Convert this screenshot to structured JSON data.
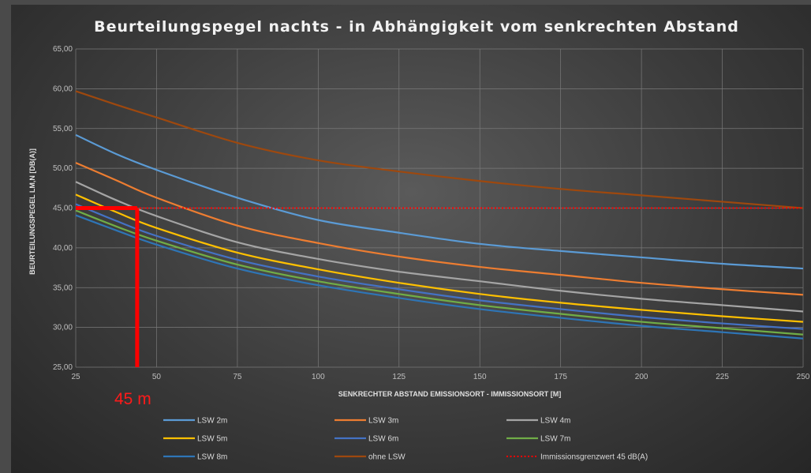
{
  "chart_data": {
    "type": "line",
    "title": "Beurteilungspegel nachts - in Abhängigkeit vom senkrechten Abstand",
    "xlabel": "SENKRECHTER ABSTAND EMISSIONSORT - IMMISSIONSORT [M]",
    "ylabel": "BEURTEILUNGSPEGEL LM,N [DB(A)]",
    "xlim": [
      25,
      250
    ],
    "ylim": [
      25,
      65
    ],
    "x_ticks": [
      25,
      50,
      75,
      100,
      125,
      150,
      175,
      200,
      225,
      250
    ],
    "x_tick_labels": [
      "25",
      "50",
      "75",
      "100",
      "125",
      "150",
      "175",
      "200",
      "225",
      "250"
    ],
    "y_ticks": [
      25,
      30,
      35,
      40,
      45,
      50,
      55,
      60,
      65
    ],
    "y_tick_labels": [
      "25,00",
      "30,00",
      "35,00",
      "40,00",
      "45,00",
      "50,00",
      "55,00",
      "60,00",
      "65,00"
    ],
    "grid": true,
    "legend_position": "bottom",
    "x": [
      25,
      37.5,
      50,
      75,
      100,
      125,
      150,
      175,
      200,
      225,
      250
    ],
    "series": [
      {
        "name": "LSW 2m",
        "color": "#5b9bd5",
        "style": "solid",
        "values": [
          54.2,
          51.8,
          49.8,
          46.3,
          43.5,
          41.9,
          40.5,
          39.6,
          38.8,
          38.0,
          37.4
        ]
      },
      {
        "name": "LSW 3m",
        "color": "#ed7d31",
        "style": "solid",
        "values": [
          50.7,
          48.5,
          46.3,
          42.8,
          40.6,
          38.9,
          37.6,
          36.6,
          35.6,
          34.8,
          34.1
        ]
      },
      {
        "name": "LSW 4m",
        "color": "#a5a5a5",
        "style": "solid",
        "values": [
          48.3,
          46.0,
          44.0,
          40.7,
          38.6,
          37.0,
          35.8,
          34.6,
          33.6,
          32.8,
          32.0
        ]
      },
      {
        "name": "LSW 5m",
        "color": "#ffc000",
        "style": "solid",
        "values": [
          46.7,
          44.5,
          42.5,
          39.4,
          37.3,
          35.6,
          34.2,
          33.1,
          32.2,
          31.4,
          30.7
        ]
      },
      {
        "name": "LSW 6m",
        "color": "#4472c4",
        "style": "solid",
        "values": [
          45.5,
          43.4,
          41.5,
          38.5,
          36.4,
          34.8,
          33.4,
          32.3,
          31.3,
          30.5,
          29.8
        ]
      },
      {
        "name": "LSW 7m",
        "color": "#70ad47",
        "style": "solid",
        "values": [
          44.7,
          42.7,
          40.9,
          37.9,
          35.8,
          34.2,
          32.8,
          31.7,
          30.7,
          29.9,
          29.1
        ]
      },
      {
        "name": "LSW 8m",
        "color": "#2e75b6",
        "style": "solid",
        "values": [
          44.1,
          42.2,
          40.4,
          37.4,
          35.3,
          33.7,
          32.3,
          31.2,
          30.2,
          29.4,
          28.6
        ]
      },
      {
        "name": "ohne LSW",
        "color": "#9e480e",
        "style": "solid",
        "values": [
          59.7,
          58.0,
          56.4,
          53.2,
          51.0,
          49.6,
          48.4,
          47.4,
          46.6,
          45.8,
          45.0
        ]
      },
      {
        "name": "Immissionsgrenzwert 45 dB(A)",
        "color": "#ff0000",
        "style": "dotted",
        "values": [
          45,
          45,
          45,
          45,
          45,
          45,
          45,
          45,
          45,
          45,
          45
        ]
      }
    ],
    "annotation": {
      "label": "45 m",
      "x": 44,
      "y": 45,
      "color": "#ff0000"
    }
  }
}
